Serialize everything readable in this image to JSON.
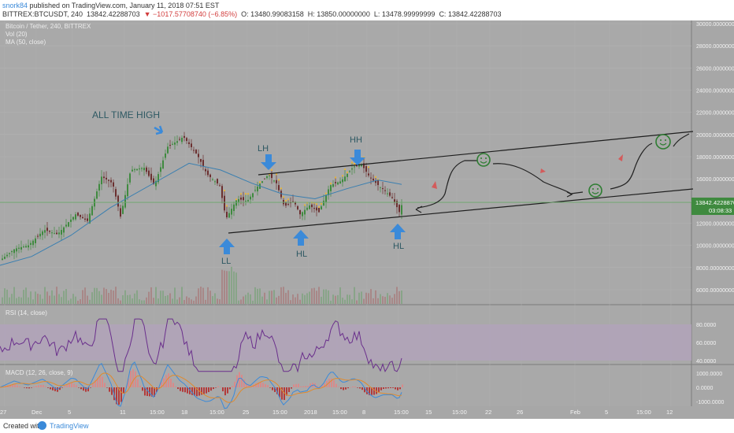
{
  "header": {
    "author": "snork84",
    "published": " published on TradingView.com, January 11, 2018 07:51 EST",
    "symbol": "BITTREX:BTCUSDT, 240",
    "last": "13842.42288703",
    "change": "▼ −1017.57708740 (−6.85%)",
    "open": "O: 13480.99083158",
    "high": "H: 13850.00000000",
    "low": "L: 13478.99999999",
    "close": "C: 13842.42288703"
  },
  "legend": {
    "title": "Bitcoin / Tether, 240, BITTREX",
    "vol": "Vol (20)",
    "ma": "MA (50, close)",
    "rsi": "RSI (14, close)",
    "macd": "MACD (12, 26, close, 9)"
  },
  "price_tag": {
    "value": "13842.42288703",
    "timer": "03:08:33"
  },
  "annotations": {
    "ath": "ALL TIME HIGH",
    "lh": "LH",
    "hh": "HH",
    "ll": "LL",
    "hl1": "HL",
    "hl2": "HL"
  },
  "colors": {
    "background": "#a7a7a7",
    "up_candle": "#3f8a3f",
    "down_candle": "#6b2f2f",
    "ma_line": "#3a7fb0",
    "arrow": "#3b8ad9",
    "rsi_line": "#6a2f8c",
    "rsi_band": "#b1a2bb",
    "macd_line": "#3b8ad9",
    "signal_line": "#e08a2c",
    "smiley": "#2e7d32"
  },
  "footer": {
    "created": "Created with",
    "brand": "TradingView"
  },
  "chart_data": {
    "type": "candlestick",
    "title": "Bitcoin / Tether, 240, BITTREX",
    "price_axis": [
      "30000.00000000",
      "28000.00000000",
      "26000.00000000",
      "24000.00000000",
      "22000.00000000",
      "20000.00000000",
      "18000.00000000",
      "16000.00000000",
      "14000.00000000",
      "12000.00000000",
      "10000.00000000",
      "8000.00000000",
      "6000.00000000"
    ],
    "x_ticks": [
      "27",
      "Dec",
      "5",
      "11",
      "15:00",
      "18",
      "15:00",
      "25",
      "15:00",
      "2018",
      "15:00",
      "8",
      "15:00",
      "15",
      "15:00",
      "22",
      "26",
      "Feb",
      "5",
      "15:00",
      "12"
    ],
    "rsi_axis": [
      "80.0000",
      "60.0000",
      "40.0000"
    ],
    "macd_axis": [
      "1000.0000",
      "0.0000",
      "-1000.0000"
    ],
    "ylim": [
      5000,
      30500
    ],
    "price_path": [
      [
        0,
        8700
      ],
      [
        18,
        9700
      ],
      [
        35,
        10000
      ],
      [
        55,
        11400
      ],
      [
        72,
        11000
      ],
      [
        95,
        12800
      ],
      [
        110,
        12200
      ],
      [
        128,
        16200
      ],
      [
        142,
        15600
      ],
      [
        152,
        12600
      ],
      [
        165,
        16800
      ],
      [
        182,
        17000
      ],
      [
        195,
        15400
      ],
      [
        212,
        18900
      ],
      [
        224,
        19400
      ],
      [
        232,
        19800
      ],
      [
        250,
        18100
      ],
      [
        262,
        16400
      ],
      [
        278,
        15400
      ],
      [
        286,
        12400
      ],
      [
        300,
        14200
      ],
      [
        313,
        14000
      ],
      [
        327,
        15400
      ],
      [
        340,
        16400
      ],
      [
        350,
        15600
      ],
      [
        360,
        13500
      ],
      [
        372,
        14000
      ],
      [
        380,
        12800
      ],
      [
        392,
        13600
      ],
      [
        404,
        13000
      ],
      [
        418,
        15400
      ],
      [
        432,
        15800
      ],
      [
        448,
        17100
      ],
      [
        458,
        17300
      ],
      [
        468,
        16200
      ],
      [
        478,
        15500
      ],
      [
        488,
        14900
      ],
      [
        498,
        14200
      ],
      [
        506,
        13000
      ],
      [
        510,
        13842
      ]
    ],
    "ma_path": [
      [
        0,
        8200
      ],
      [
        40,
        9000
      ],
      [
        90,
        10900
      ],
      [
        140,
        13400
      ],
      [
        200,
        15800
      ],
      [
        240,
        17400
      ],
      [
        280,
        16800
      ],
      [
        320,
        15600
      ],
      [
        360,
        14600
      ],
      [
        400,
        14200
      ],
      [
        440,
        15100
      ],
      [
        480,
        15900
      ],
      [
        510,
        15500
      ]
    ]
  }
}
